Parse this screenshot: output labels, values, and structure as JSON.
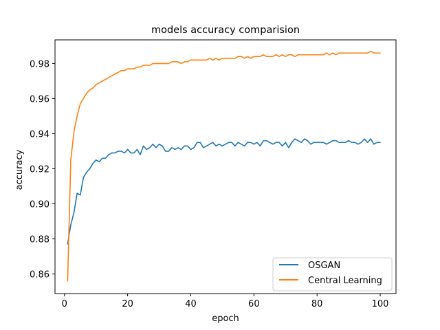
{
  "chart_data": {
    "type": "line",
    "title": "models accuracy comparision",
    "xlabel": "epoch",
    "ylabel": "accuracy",
    "xlim": [
      -3,
      105
    ],
    "ylim": [
      0.8488,
      0.9935
    ],
    "xticks": [
      0,
      20,
      40,
      60,
      80,
      100
    ],
    "xtick_labels": [
      "0",
      "20",
      "40",
      "60",
      "80",
      "100"
    ],
    "yticks": [
      0.86,
      0.88,
      0.9,
      0.92,
      0.94,
      0.96,
      0.98
    ],
    "ytick_labels": [
      "0.86",
      "0.88",
      "0.90",
      "0.92",
      "0.94",
      "0.96",
      "0.98"
    ],
    "grid": false,
    "legend_position": "lower-right",
    "x": [
      1,
      2,
      3,
      4,
      5,
      6,
      7,
      8,
      9,
      10,
      11,
      12,
      13,
      14,
      15,
      16,
      17,
      18,
      19,
      20,
      21,
      22,
      23,
      24,
      25,
      26,
      27,
      28,
      29,
      30,
      31,
      32,
      33,
      34,
      35,
      36,
      37,
      38,
      39,
      40,
      41,
      42,
      43,
      44,
      45,
      46,
      47,
      48,
      49,
      50,
      51,
      52,
      53,
      54,
      55,
      56,
      57,
      58,
      59,
      60,
      61,
      62,
      63,
      64,
      65,
      66,
      67,
      68,
      69,
      70,
      71,
      72,
      73,
      74,
      75,
      76,
      77,
      78,
      79,
      80,
      81,
      82,
      83,
      84,
      85,
      86,
      87,
      88,
      89,
      90,
      91,
      92,
      93,
      94,
      95,
      96,
      97,
      98,
      99,
      100
    ],
    "series": [
      {
        "name": "OSGAN",
        "color": "#1f77b4",
        "values": [
          0.877,
          0.888,
          0.895,
          0.906,
          0.905,
          0.915,
          0.918,
          0.92,
          0.923,
          0.925,
          0.924,
          0.926,
          0.926,
          0.928,
          0.929,
          0.929,
          0.93,
          0.93,
          0.929,
          0.931,
          0.929,
          0.929,
          0.931,
          0.928,
          0.933,
          0.931,
          0.932,
          0.934,
          0.932,
          0.934,
          0.933,
          0.93,
          0.93,
          0.932,
          0.931,
          0.932,
          0.931,
          0.933,
          0.933,
          0.931,
          0.932,
          0.935,
          0.935,
          0.932,
          0.933,
          0.934,
          0.935,
          0.933,
          0.934,
          0.933,
          0.934,
          0.935,
          0.935,
          0.933,
          0.935,
          0.934,
          0.933,
          0.935,
          0.935,
          0.934,
          0.935,
          0.933,
          0.936,
          0.936,
          0.935,
          0.934,
          0.935,
          0.935,
          0.933,
          0.935,
          0.932,
          0.935,
          0.937,
          0.936,
          0.935,
          0.937,
          0.936,
          0.934,
          0.935,
          0.935,
          0.935,
          0.935,
          0.934,
          0.935,
          0.936,
          0.936,
          0.935,
          0.935,
          0.935,
          0.936,
          0.935,
          0.935,
          0.934,
          0.935,
          0.937,
          0.935,
          0.937,
          0.934,
          0.935,
          0.935
        ]
      },
      {
        "name": "Central Learning",
        "color": "#ff7f0e",
        "values": [
          0.856,
          0.925,
          0.941,
          0.95,
          0.957,
          0.96,
          0.963,
          0.965,
          0.966,
          0.968,
          0.969,
          0.97,
          0.971,
          0.972,
          0.973,
          0.974,
          0.975,
          0.976,
          0.976,
          0.977,
          0.977,
          0.977,
          0.978,
          0.978,
          0.979,
          0.979,
          0.979,
          0.98,
          0.98,
          0.98,
          0.98,
          0.98,
          0.98,
          0.981,
          0.981,
          0.981,
          0.98,
          0.981,
          0.981,
          0.982,
          0.982,
          0.982,
          0.982,
          0.982,
          0.982,
          0.983,
          0.982,
          0.983,
          0.982,
          0.983,
          0.983,
          0.983,
          0.983,
          0.983,
          0.984,
          0.984,
          0.983,
          0.984,
          0.983,
          0.984,
          0.984,
          0.984,
          0.985,
          0.984,
          0.984,
          0.984,
          0.985,
          0.984,
          0.985,
          0.984,
          0.985,
          0.985,
          0.984,
          0.985,
          0.985,
          0.985,
          0.985,
          0.985,
          0.985,
          0.985,
          0.985,
          0.985,
          0.986,
          0.985,
          0.986,
          0.985,
          0.986,
          0.986,
          0.986,
          0.986,
          0.986,
          0.986,
          0.986,
          0.986,
          0.986,
          0.986,
          0.987,
          0.986,
          0.986,
          0.986
        ]
      }
    ]
  }
}
